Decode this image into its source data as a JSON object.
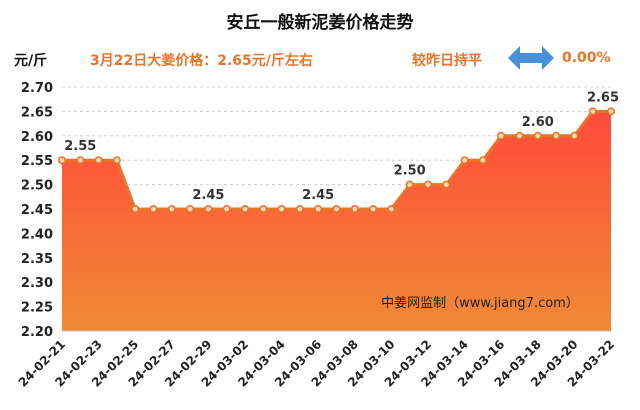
{
  "title": "安丘一般新泥姜价格走势",
  "unit": "元/斤",
  "price_note": "3月22日大姜价格：2.65元/斤左右",
  "compare_text": "较昨日持平",
  "change_pct": "0.00%",
  "compare_icon": "double-arrow-icon",
  "watermark": "中姜网监制（www.jiang7.com）",
  "colors": {
    "area_top": "#ff4a3a",
    "area_bottom": "#f08a35",
    "line": "#e8742a",
    "marker_fill": "#ffd9b0",
    "accent_text": "#e8742a",
    "arrow": "#4a90d9"
  },
  "chart_data": {
    "type": "area",
    "title": "安丘一般新泥姜价格走势",
    "xlabel": "",
    "ylabel": "元/斤",
    "ylim": [
      2.2,
      2.7
    ],
    "yticks": [
      "2.20",
      "2.25",
      "2.30",
      "2.35",
      "2.40",
      "2.45",
      "2.50",
      "2.55",
      "2.60",
      "2.65",
      "2.70"
    ],
    "grid": true,
    "x": [
      "24-02-21",
      "24-02-22",
      "24-02-23",
      "24-02-24",
      "24-02-25",
      "24-02-26",
      "24-02-27",
      "24-02-28",
      "24-02-29",
      "24-03-01",
      "24-03-02",
      "24-03-03",
      "24-03-04",
      "24-03-05",
      "24-03-06",
      "24-03-07",
      "24-03-08",
      "24-03-09",
      "24-03-10",
      "24-03-11",
      "24-03-12",
      "24-03-13",
      "24-03-14",
      "24-03-15",
      "24-03-16",
      "24-03-17",
      "24-03-18",
      "24-03-19",
      "24-03-20",
      "24-03-21",
      "24-03-22"
    ],
    "xticks": [
      "24-02-21",
      "24-02-23",
      "24-02-25",
      "24-02-27",
      "24-02-29",
      "24-03-02",
      "24-03-04",
      "24-03-06",
      "24-03-08",
      "24-03-10",
      "24-03-12",
      "24-03-14",
      "24-03-16",
      "24-03-18",
      "24-03-20",
      "24-03-22"
    ],
    "values": [
      2.55,
      2.55,
      2.55,
      2.55,
      2.45,
      2.45,
      2.45,
      2.45,
      2.45,
      2.45,
      2.45,
      2.45,
      2.45,
      2.45,
      2.45,
      2.45,
      2.45,
      2.45,
      2.45,
      2.5,
      2.5,
      2.5,
      2.55,
      2.55,
      2.6,
      2.6,
      2.6,
      2.6,
      2.6,
      2.65,
      2.65
    ],
    "data_labels": [
      {
        "x": "24-02-22",
        "text": "2.55"
      },
      {
        "x": "24-02-29",
        "text": "2.45"
      },
      {
        "x": "24-03-06",
        "text": "2.45"
      },
      {
        "x": "24-03-11",
        "text": "2.50"
      },
      {
        "x": "24-03-18",
        "text": "2.60"
      },
      {
        "x": "24-03-22",
        "text": "2.65"
      }
    ]
  }
}
